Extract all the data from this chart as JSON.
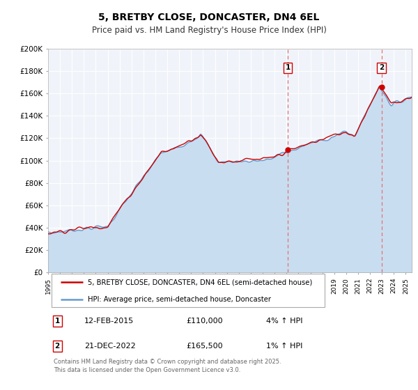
{
  "title": "5, BRETBY CLOSE, DONCASTER, DN4 6EL",
  "subtitle": "Price paid vs. HM Land Registry's House Price Index (HPI)",
  "legend_line1": "5, BRETBY CLOSE, DONCASTER, DN4 6EL (semi-detached house)",
  "legend_line2": "HPI: Average price, semi-detached house, Doncaster",
  "line_color": "#cc0000",
  "hpi_color": "#6699cc",
  "hpi_fill_color": "#c8ddf0",
  "background_color": "#ffffff",
  "chart_bg_color": "#f0f4fa",
  "grid_color": "#ffffff",
  "ylim": [
    0,
    200000
  ],
  "yticks": [
    0,
    20000,
    40000,
    60000,
    80000,
    100000,
    120000,
    140000,
    160000,
    180000,
    200000
  ],
  "ytick_labels": [
    "£0",
    "£20K",
    "£40K",
    "£60K",
    "£80K",
    "£100K",
    "£120K",
    "£140K",
    "£160K",
    "£180K",
    "£200K"
  ],
  "sale1_date_num": 2015.11,
  "sale1_price": 110000,
  "sale2_date_num": 2022.97,
  "sale2_price": 165500,
  "annotation_table": [
    {
      "num": "1",
      "date": "12-FEB-2015",
      "price": "£110,000",
      "hpi": "4% ↑ HPI"
    },
    {
      "num": "2",
      "date": "21-DEC-2022",
      "price": "£165,500",
      "hpi": "1% ↑ HPI"
    }
  ],
  "footer": "Contains HM Land Registry data © Crown copyright and database right 2025.\nThis data is licensed under the Open Government Licence v3.0."
}
